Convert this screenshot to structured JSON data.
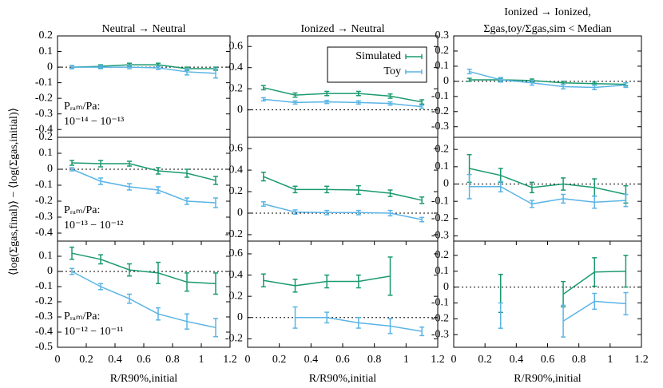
{
  "chart_data": [
    {
      "type": "line",
      "title": [
        "Neutral → Neutral"
      ],
      "x": [
        0.1,
        0.3,
        0.5,
        0.7,
        0.9,
        1.1
      ],
      "xlim": [
        0,
        1.2
      ],
      "ylim": [
        -0.45,
        0.2
      ],
      "yticks": [
        -0.4,
        -0.3,
        -0.2,
        -0.1,
        0,
        0.1,
        0.2
      ],
      "zero_line": true,
      "annotation": [
        "Pᵣₐₘ/Pa:",
        "10⁻¹⁴ − 10⁻¹³"
      ],
      "series": [
        {
          "color": "#1a9a6e",
          "values": [
            0,
            0.005,
            0.015,
            0.015,
            -0.01,
            -0.01
          ],
          "errors": [
            0.01,
            0.01,
            0.01,
            0.01,
            0.01,
            0.01
          ]
        },
        {
          "color": "#5ab4e5",
          "values": [
            0,
            0,
            0,
            -0.005,
            -0.03,
            -0.04
          ],
          "errors": [
            0.01,
            0.01,
            0.01,
            0.01,
            0.02,
            0.03
          ]
        }
      ]
    },
    {
      "type": "line",
      "title": [
        "Ionized → Neutral"
      ],
      "x": [
        0.1,
        0.3,
        0.5,
        0.7,
        0.9,
        1.1
      ],
      "xlim": [
        0,
        1.2
      ],
      "ylim": [
        -0.26,
        0.7
      ],
      "yticks": [
        0,
        0.2,
        0.4,
        0.6
      ],
      "zero_line": true,
      "legend": "upper right",
      "series": [
        {
          "name": "Simulated",
          "color": "#1a9a6e",
          "values": [
            0.21,
            0.14,
            0.155,
            0.155,
            0.13,
            0.075
          ],
          "errors": [
            0.02,
            0.02,
            0.02,
            0.02,
            0.02,
            0.02
          ]
        },
        {
          "name": "Toy",
          "color": "#5ab4e5",
          "values": [
            0.1,
            0.07,
            0.075,
            0.07,
            0.06,
            0.03
          ],
          "errors": [
            0.015,
            0.015,
            0.015,
            0.015,
            0.015,
            0.015
          ]
        }
      ]
    },
    {
      "type": "line",
      "title": [
        "Ionized → Ionized,",
        "Σgas,toy/Σgas,sim < Median"
      ],
      "x": [
        0.1,
        0.3,
        0.5,
        0.7,
        0.9,
        1.1
      ],
      "xlim": [
        0,
        1.2
      ],
      "ylim": [
        -0.37,
        0.3
      ],
      "yticks": [
        -0.3,
        -0.2,
        -0.1,
        0,
        0.1,
        0.2,
        0.3
      ],
      "zero_line": true,
      "series": [
        {
          "color": "#1a9a6e",
          "values": [
            0.01,
            0.01,
            0.005,
            -0.01,
            -0.015,
            -0.02
          ],
          "errors": [
            0.01,
            0.01,
            0.01,
            0.01,
            0.01,
            0.01
          ]
        },
        {
          "color": "#5ab4e5",
          "values": [
            0.065,
            0.01,
            -0.01,
            -0.035,
            -0.04,
            -0.025
          ],
          "errors": [
            0.015,
            0.015,
            0.015,
            0.015,
            0.015,
            0.015
          ]
        }
      ]
    },
    {
      "type": "line",
      "ylabel": "⟨log(Σgas,final)⟩ − ⟨log(Σgas,initial)⟩",
      "x": [
        0.1,
        0.3,
        0.5,
        0.7,
        0.9,
        1.1
      ],
      "xlim": [
        0,
        1.2
      ],
      "ylim": [
        -0.45,
        0.2
      ],
      "yticks": [
        -0.4,
        -0.3,
        -0.2,
        -0.1,
        0,
        0.1,
        0.2
      ],
      "zero_line": true,
      "annotation": [
        "Pᵣₐₘ/Pa:",
        "10⁻¹³ − 10⁻¹²"
      ],
      "series": [
        {
          "color": "#1a9a6e",
          "values": [
            0.04,
            0.035,
            0.035,
            -0.01,
            -0.025,
            -0.07
          ],
          "errors": [
            0.015,
            0.02,
            0.015,
            0.02,
            0.025,
            0.025
          ]
        },
        {
          "color": "#5ab4e5",
          "values": [
            0,
            -0.075,
            -0.11,
            -0.13,
            -0.2,
            -0.21
          ],
          "errors": [
            0.01,
            0.02,
            0.02,
            0.02,
            0.02,
            0.03
          ]
        }
      ]
    },
    {
      "type": "line",
      "x": [
        0.1,
        0.3,
        0.5,
        0.7,
        0.9,
        1.1
      ],
      "xlim": [
        0,
        1.2
      ],
      "ylim": [
        -0.26,
        0.705
      ],
      "yticks": [
        -0.2,
        0,
        0.2,
        0.4,
        0.6
      ],
      "zero_line": true,
      "series": [
        {
          "color": "#1a9a6e",
          "values": [
            0.34,
            0.22,
            0.22,
            0.215,
            0.185,
            0.12
          ],
          "errors": [
            0.04,
            0.03,
            0.03,
            0.04,
            0.03,
            0.03
          ]
        },
        {
          "color": "#5ab4e5",
          "values": [
            0.085,
            0.01,
            0.005,
            0.005,
            0,
            -0.06
          ],
          "errors": [
            0.02,
            0.02,
            0.02,
            0.02,
            0.025,
            0.02
          ]
        }
      ]
    },
    {
      "type": "line",
      "x": [
        0.1,
        0.3,
        0.5,
        0.7,
        0.9,
        1.1
      ],
      "xlim": [
        0,
        1.2
      ],
      "ylim": [
        -0.33,
        0.27
      ],
      "yticks": [
        -0.3,
        -0.2,
        -0.1,
        0,
        0.1,
        0.2
      ],
      "zero_line": true,
      "series": [
        {
          "color": "#1a9a6e",
          "values": [
            0.09,
            0.05,
            -0.02,
            0,
            -0.02,
            -0.06
          ],
          "errors": [
            0.08,
            0.04,
            0.03,
            0.035,
            0.05,
            0.05
          ]
        },
        {
          "color": "#5ab4e5",
          "values": [
            -0.015,
            -0.015,
            -0.115,
            -0.085,
            -0.105,
            -0.095
          ],
          "errors": [
            0.07,
            0.03,
            0.02,
            0.025,
            0.035,
            0.035
          ]
        }
      ]
    },
    {
      "type": "line",
      "xlabel": "R/R90%,initial",
      "x": [
        0.1,
        0.3,
        0.5,
        0.7,
        0.9,
        1.1
      ],
      "xlim": [
        0,
        1.2
      ],
      "xticks": [
        0,
        0.2,
        0.4,
        0.6,
        0.8,
        1,
        1.2
      ],
      "ylim": [
        -0.5,
        0.2
      ],
      "yticks": [
        -0.5,
        -0.4,
        -0.3,
        -0.2,
        -0.1,
        0,
        0.1
      ],
      "zero_line": true,
      "annotation": [
        "Pᵣₐₘ/Pa:",
        "10⁻¹² − 10⁻¹¹"
      ],
      "series": [
        {
          "color": "#1a9a6e",
          "values": [
            0.12,
            0.08,
            0.01,
            -0.01,
            -0.07,
            -0.08
          ],
          "errors": [
            0.04,
            0.03,
            0.04,
            0.07,
            0.06,
            0.07
          ]
        },
        {
          "color": "#5ab4e5",
          "values": [
            0,
            -0.1,
            -0.18,
            -0.28,
            -0.33,
            -0.37
          ],
          "errors": [
            0.02,
            0.02,
            0.03,
            0.04,
            0.05,
            0.06
          ]
        }
      ]
    },
    {
      "type": "line",
      "xlabel": "R/R90%,initial",
      "x": [
        0.1,
        0.3,
        0.5,
        0.7,
        0.9,
        1.1
      ],
      "xlim": [
        0,
        1.2
      ],
      "xticks": [
        0,
        0.2,
        0.4,
        0.6,
        0.8,
        1,
        1.2
      ],
      "ylim": [
        -0.28,
        0.72
      ],
      "yticks": [
        -0.2,
        0,
        0.2,
        0.4,
        0.6
      ],
      "zero_line": true,
      "series": [
        {
          "color": "#1a9a6e",
          "values": [
            0.35,
            0.3,
            0.34,
            0.34,
            0.39,
            null
          ],
          "errors": [
            0.06,
            0.06,
            0.06,
            0.06,
            0.18,
            null
          ]
        },
        {
          "color": "#5ab4e5",
          "values": [
            null,
            0,
            0,
            -0.05,
            -0.08,
            -0.13
          ],
          "errors": [
            null,
            0.1,
            0.05,
            0.05,
            0.07,
            0.04
          ]
        }
      ]
    },
    {
      "type": "line",
      "xlabel": "R/R90%,initial",
      "x": [
        0.1,
        0.3,
        0.5,
        0.7,
        0.9,
        1.1
      ],
      "xlim": [
        0,
        1.2
      ],
      "xticks": [
        0,
        0.2,
        0.4,
        0.6,
        0.8,
        1,
        1.2
      ],
      "ylim": [
        -0.38,
        0.29
      ],
      "yticks": [
        -0.3,
        -0.2,
        -0.1,
        0,
        0.1,
        0.2
      ],
      "zero_line": true,
      "series": [
        {
          "color": "#1a9a6e",
          "values": [
            null,
            -0.04,
            null,
            -0.045,
            0.095,
            0.1
          ],
          "errors": [
            null,
            0.12,
            null,
            0.08,
            0.09,
            0.1
          ]
        },
        {
          "color": "#5ab4e5",
          "values": [
            null,
            -0.18,
            null,
            -0.215,
            -0.09,
            -0.105
          ],
          "errors": [
            null,
            0.08,
            null,
            0.1,
            0.05,
            0.07
          ]
        }
      ]
    }
  ]
}
